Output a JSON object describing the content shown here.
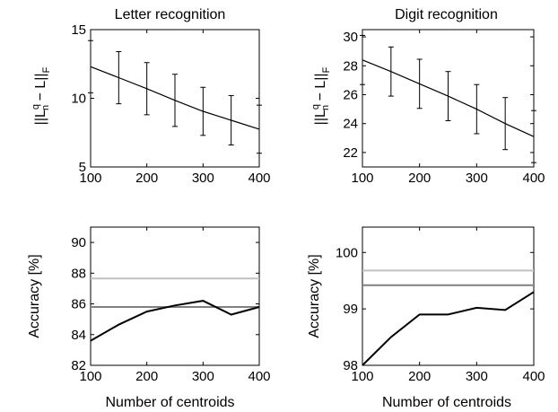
{
  "chart_data": [
    {
      "type": "line",
      "title": "Letter recognition",
      "ylabel_html": true,
      "ylabel": {
        "norm_open": "||L",
        "sup": "q",
        "sub": "n",
        "norm_close": " − L||",
        "sub2": "F"
      },
      "xlabel": "",
      "xlim": [
        100,
        400
      ],
      "ylim": [
        5,
        15
      ],
      "xticks": [
        100,
        200,
        300,
        400
      ],
      "yticks": [
        5,
        10,
        15
      ],
      "series": [
        {
          "color": "#000000",
          "x": [
            100,
            150,
            200,
            250,
            300,
            350,
            400
          ],
          "y": [
            12.3,
            11.5,
            10.7,
            9.85,
            9.05,
            8.4,
            7.75
          ],
          "err": [
            1.9,
            1.9,
            1.9,
            1.9,
            1.75,
            1.8,
            1.75
          ]
        }
      ]
    },
    {
      "type": "line",
      "title": "Digit recognition",
      "ylabel_html": true,
      "ylabel": {
        "norm_open": "||L",
        "sup": "q",
        "sub": "n",
        "norm_close": " − L||",
        "sub2": "F"
      },
      "xlabel": "",
      "xlim": [
        100,
        400
      ],
      "ylim": [
        21,
        30.5
      ],
      "xticks": [
        100,
        200,
        300,
        400
      ],
      "yticks": [
        22,
        24,
        26,
        28,
        30
      ],
      "series": [
        {
          "color": "#000000",
          "x": [
            100,
            150,
            200,
            250,
            300,
            350,
            400
          ],
          "y": [
            28.4,
            27.6,
            26.75,
            25.9,
            25.0,
            24.0,
            23.1
          ],
          "err": [
            1.7,
            1.7,
            1.7,
            1.7,
            1.7,
            1.8,
            1.8
          ]
        }
      ]
    },
    {
      "type": "line",
      "title": "",
      "ylabel": "Accuracy [%]",
      "xlabel": "Number of centroids",
      "xlim": [
        100,
        400
      ],
      "ylim": [
        82,
        91
      ],
      "xticks": [
        100,
        200,
        300,
        400
      ],
      "yticks": [
        82,
        84,
        86,
        88,
        90
      ],
      "series": [
        {
          "color": "#c0c0c0",
          "x": [
            100,
            400
          ],
          "y": [
            87.65,
            87.65
          ]
        },
        {
          "color": "#808080",
          "x": [
            100,
            400
          ],
          "y": [
            85.8,
            85.8
          ]
        },
        {
          "color": "#000000",
          "x": [
            100,
            150,
            200,
            250,
            300,
            350,
            400
          ],
          "y": [
            83.6,
            84.65,
            85.5,
            85.9,
            86.2,
            85.3,
            85.8
          ]
        }
      ]
    },
    {
      "type": "line",
      "title": "",
      "ylabel": "Accuracy [%]",
      "xlabel": "Number of centroids",
      "xlim": [
        100,
        400
      ],
      "ylim": [
        98,
        100.45
      ],
      "xticks": [
        100,
        200,
        300,
        400
      ],
      "yticks": [
        98,
        99,
        100
      ],
      "series": [
        {
          "color": "#c0c0c0",
          "x": [
            100,
            400
          ],
          "y": [
            99.68,
            99.68
          ]
        },
        {
          "color": "#808080",
          "x": [
            100,
            400
          ],
          "y": [
            99.42,
            99.42
          ]
        },
        {
          "color": "#000000",
          "x": [
            100,
            150,
            200,
            250,
            300,
            350,
            400
          ],
          "y": [
            98.0,
            98.5,
            98.9,
            98.9,
            99.02,
            98.98,
            99.3
          ]
        }
      ]
    }
  ]
}
